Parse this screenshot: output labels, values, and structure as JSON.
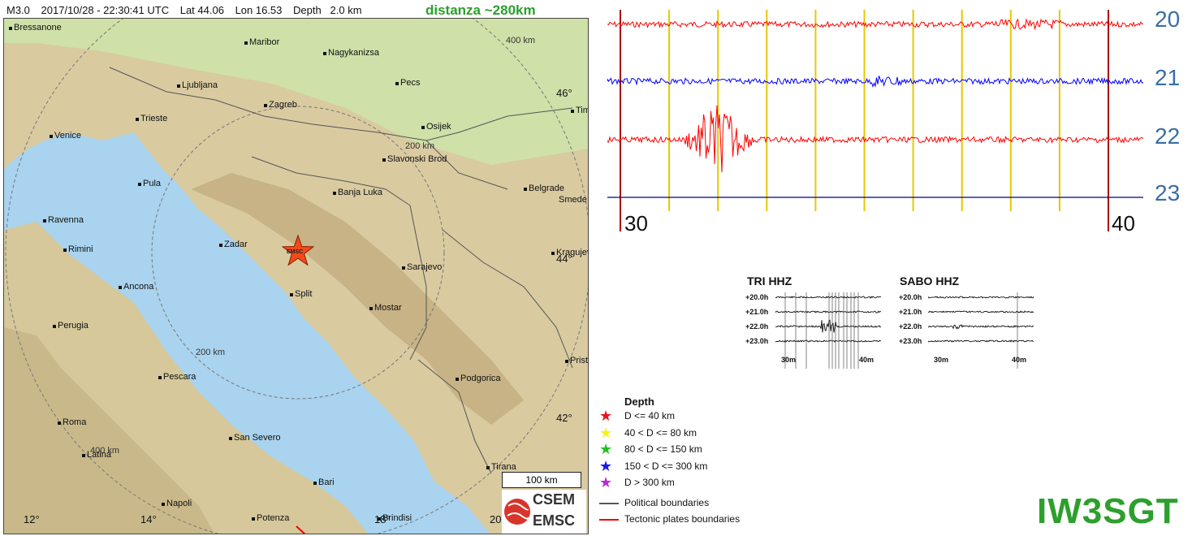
{
  "event": {
    "magnitude": "M3.0",
    "datetime": "2017/10/28 - 22:30:41 UTC",
    "lat": "Lat 44.06",
    "lon": "Lon 16.53",
    "depth": "Depth   2.0 km",
    "distance_note": "distanza ~280km",
    "epicenter_label": "EMSC"
  },
  "map": {
    "cities": {
      "bressanone": "Bressanone",
      "maribor": "Maribor",
      "nagykanizsa": "Nagykanizsa",
      "ljubljana": "Ljubljana",
      "pecs": "Pecs",
      "trieste": "Trieste",
      "zagreb": "Zagreb",
      "venice": "Venice",
      "osijek": "Osijek",
      "timisoara": "Tim",
      "slavonski_brod": "Slavonski Brod",
      "pula": "Pula",
      "banja_luka": "Banja Luka",
      "belgrade": "Belgrade",
      "smederevo": "Smede",
      "ravenna": "Ravenna",
      "rimini": "Rimini",
      "zadar": "Zadar",
      "kragujevac": "Kragujev",
      "sarajevo": "Sarajevo",
      "ancona": "Ancona",
      "split": "Split",
      "mostar": "Mostar",
      "perugia": "Perugia",
      "pristina": "Prist",
      "pescara": "Pescara",
      "podgorica": "Podgorica",
      "roma": "Roma",
      "san_severo": "San Severo",
      "latina": "Latina",
      "tirana": "Tirana",
      "bari": "Bari",
      "napoli": "Napoli",
      "potenza": "Potenza",
      "brindisi": "Brindisi"
    },
    "degrees": {
      "lat46": "46°",
      "lat44": "44°",
      "lat42": "42°",
      "lon12": "12°",
      "lon14": "14°",
      "lon18": "18°",
      "lon20": "20"
    },
    "rings": {
      "r400": "400 km",
      "r200a": "200 km",
      "r200b": "200 km",
      "r400b": "400 km"
    },
    "scale": "100 km",
    "logo": {
      "top": "CSEM",
      "bottom": "EMSC"
    }
  },
  "seismogram": {
    "hour_labels": [
      "20",
      "21",
      "22",
      "23"
    ],
    "minute_labels": [
      "30",
      "40"
    ],
    "colors": {
      "hour20": "#ff0000",
      "hour21": "#0000ff",
      "hour22": "#ff0000",
      "hour23": "#000080",
      "grid": "#e6c800",
      "marker": "#b00000"
    }
  },
  "mini_plots": [
    {
      "title": "TRI HHZ",
      "rows": [
        "+20.0h",
        "+21.0h",
        "+22.0h",
        "+23.0h"
      ],
      "ticks": [
        "30m",
        "40m"
      ]
    },
    {
      "title": "SABO HHZ",
      "rows": [
        "+20.0h",
        "+21.0h",
        "+22.0h",
        "+23.0h"
      ],
      "ticks": [
        "30m",
        "40m"
      ]
    }
  ],
  "legend": {
    "title": "Depth",
    "depth_items": [
      {
        "label": "D <= 40 km",
        "color": "#e8141b"
      },
      {
        "label": "40 < D <= 80 km",
        "color": "#f5f51c"
      },
      {
        "label": "80 < D <= 150 km",
        "color": "#22c11c"
      },
      {
        "label": "150 < D <= 300 km",
        "color": "#1a1ae6"
      },
      {
        "label": "D > 300 km",
        "color": "#b82cd1"
      }
    ],
    "political": "Political boundaries",
    "tectonic": "Tectonic plates boundaries"
  },
  "signature": "IW3SGT"
}
